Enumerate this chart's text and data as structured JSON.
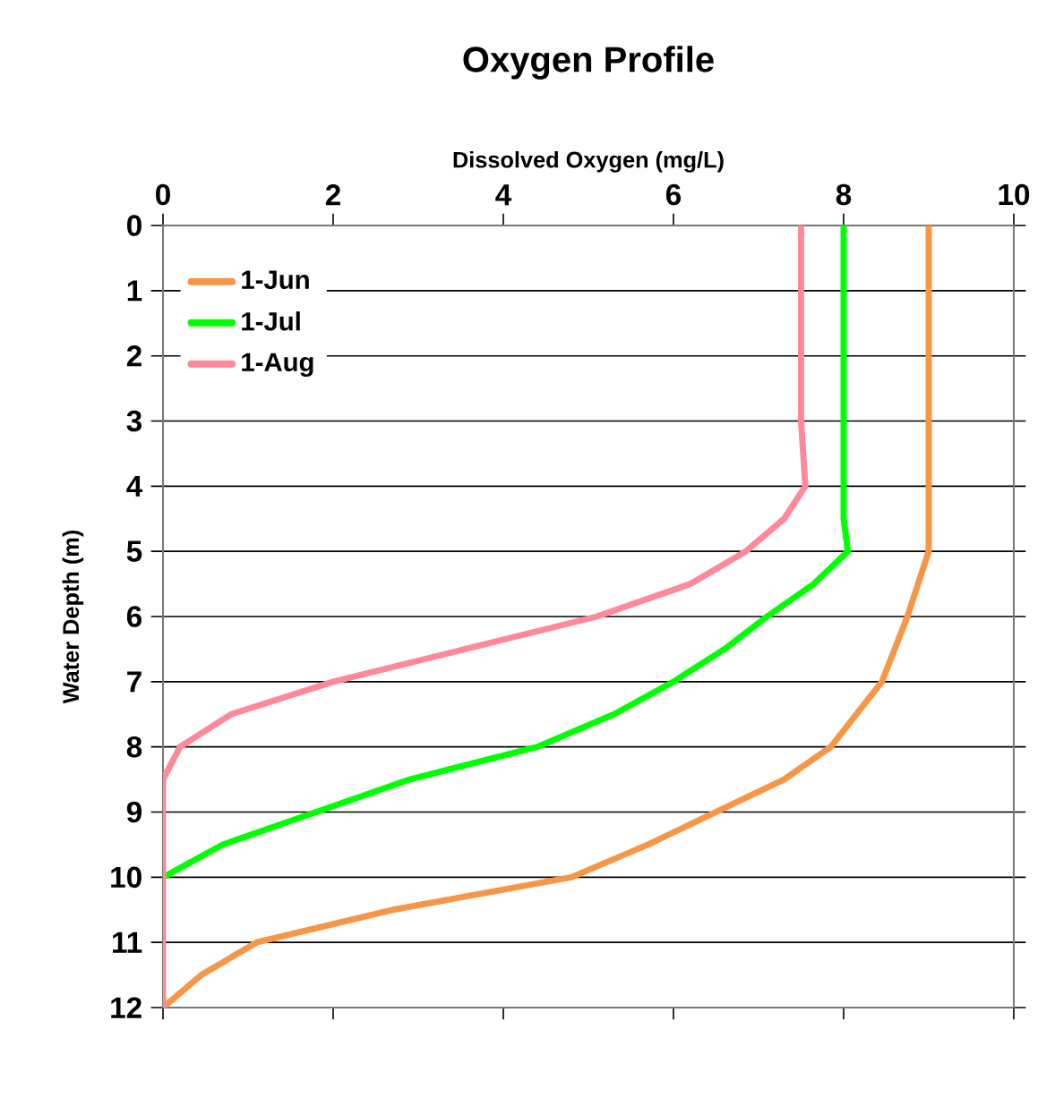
{
  "chart_data": {
    "type": "line",
    "title": "Oxygen Profile",
    "xlabel": "Dissolved Oxygen (mg/L)",
    "ylabel": "Water Depth (m)",
    "xlim": [
      0,
      10
    ],
    "xticks": [
      0,
      2,
      4,
      6,
      8,
      10
    ],
    "ylim": [
      12,
      0
    ],
    "yticks": [
      0,
      1,
      2,
      3,
      4,
      5,
      6,
      7,
      8,
      9,
      10,
      11,
      12
    ],
    "grid": "y",
    "legend": "top left",
    "series": [
      {
        "name": "1-Jun",
        "color": "#f79646",
        "x": [
          9.0,
          9.0,
          8.75,
          8.45,
          7.85,
          7.3,
          6.5,
          5.7,
          4.8,
          2.7,
          1.1,
          0.45,
          0.0
        ],
        "values": [
          0,
          5,
          6,
          7,
          8,
          8.5,
          9,
          9.5,
          10,
          10.5,
          11,
          11.5,
          12
        ]
      },
      {
        "name": "1-Jul",
        "color": "#00ff00",
        "x": [
          8.0,
          8.0,
          8.05,
          7.65,
          7.1,
          6.6,
          6.0,
          5.3,
          4.4,
          2.9,
          1.8,
          0.7,
          0.0
        ],
        "values": [
          0,
          4.5,
          5,
          5.5,
          6,
          6.5,
          7,
          7.5,
          8,
          8.5,
          9,
          9.5,
          10
        ]
      },
      {
        "name": "1-Aug",
        "color": "#ff8899",
        "x": [
          7.5,
          7.5,
          7.55,
          7.3,
          6.85,
          6.2,
          5.1,
          3.55,
          2.0,
          0.8,
          0.2,
          0.0,
          0.0
        ],
        "values": [
          0,
          3,
          4,
          4.5,
          5,
          5.5,
          6,
          6.5,
          7,
          7.5,
          8,
          8.5,
          12
        ]
      }
    ]
  }
}
